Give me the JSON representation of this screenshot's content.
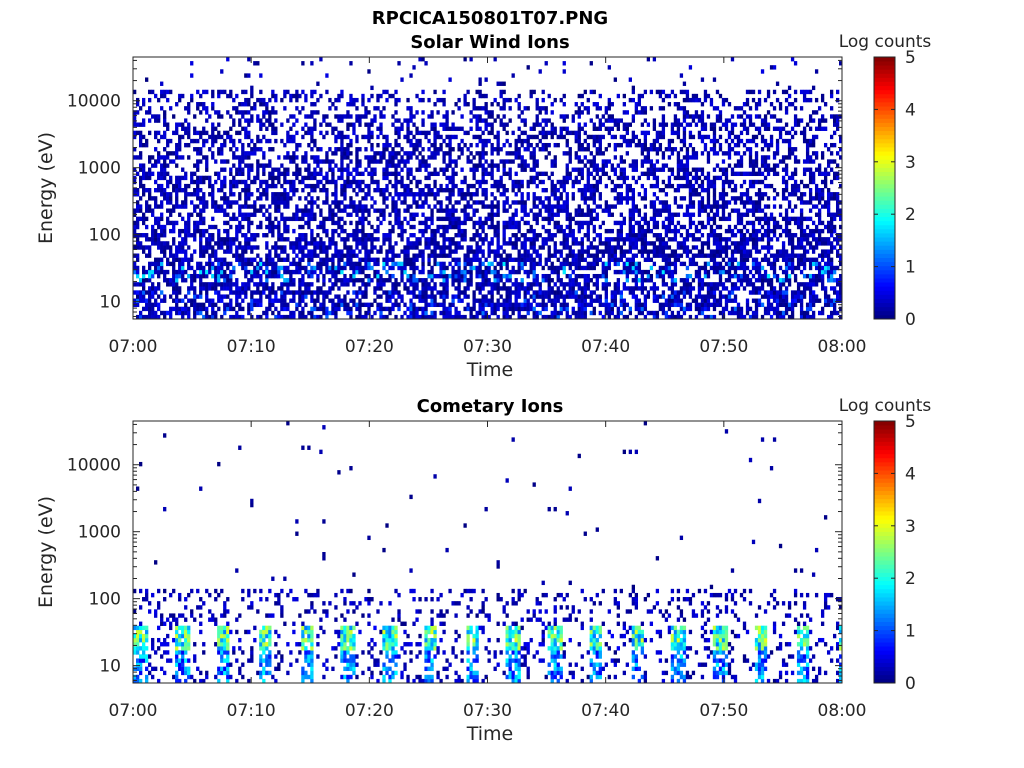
{
  "figure_title": "RPCICA150801T07.PNG",
  "colors": {
    "colormap": [
      "#00007f",
      "#0000ff",
      "#007fff",
      "#00ffff",
      "#7fff7f",
      "#ffff00",
      "#ff7f00",
      "#ff0000",
      "#7f0000"
    ],
    "axis": "#262626",
    "background": "#ffffff"
  },
  "chart_data": [
    {
      "type": "heatmap",
      "title": "Solar Wind Ions",
      "xlabel": "Time",
      "ylabel": "Energy (eV)",
      "x_ticks": [
        "07:00",
        "07:10",
        "07:20",
        "07:30",
        "07:40",
        "07:50",
        "08:00"
      ],
      "y_scale": "log",
      "y_ticks": [
        10,
        100,
        1000,
        10000
      ],
      "ylim": [
        5.5,
        45000
      ],
      "colorbar": {
        "label": "Log counts",
        "range": [
          0,
          5
        ],
        "ticks": [
          0,
          1,
          2,
          3,
          4,
          5
        ]
      },
      "legend": "right",
      "profile": {
        "description_of_counts": "sparse single counts (log 0-0.5) filling 5.5 eV to ~15000 eV, densest below 100 eV; bands at 20-40 eV reach log ~1.3-1.8",
        "dense_energy_range": [
          5.5,
          15000
        ],
        "peak_band": [
          20,
          40
        ],
        "peak_log_counts": 1.8
      }
    },
    {
      "type": "heatmap",
      "title": "Cometary Ions",
      "xlabel": "Time",
      "ylabel": "Energy (eV)",
      "x_ticks": [
        "07:00",
        "07:10",
        "07:20",
        "07:30",
        "07:40",
        "07:50",
        "08:00"
      ],
      "y_scale": "log",
      "y_ticks": [
        10,
        100,
        1000,
        10000
      ],
      "ylim": [
        5.5,
        45000
      ],
      "colorbar": {
        "label": "Log counts",
        "range": [
          0,
          5
        ],
        "ticks": [
          0,
          1,
          2,
          3,
          4,
          5
        ]
      },
      "legend": "right",
      "profile": {
        "description_of_counts": "periodic bursts of 18-40 eV ions reaching log ~2.5-3 roughly every 3.5 minutes; scattered single counts up to ~150 eV and rare counts up to ~28000 eV",
        "burst_band": [
          18,
          40
        ],
        "burst_period_minutes": 3.5,
        "peak_log_counts": 3.0
      }
    }
  ]
}
